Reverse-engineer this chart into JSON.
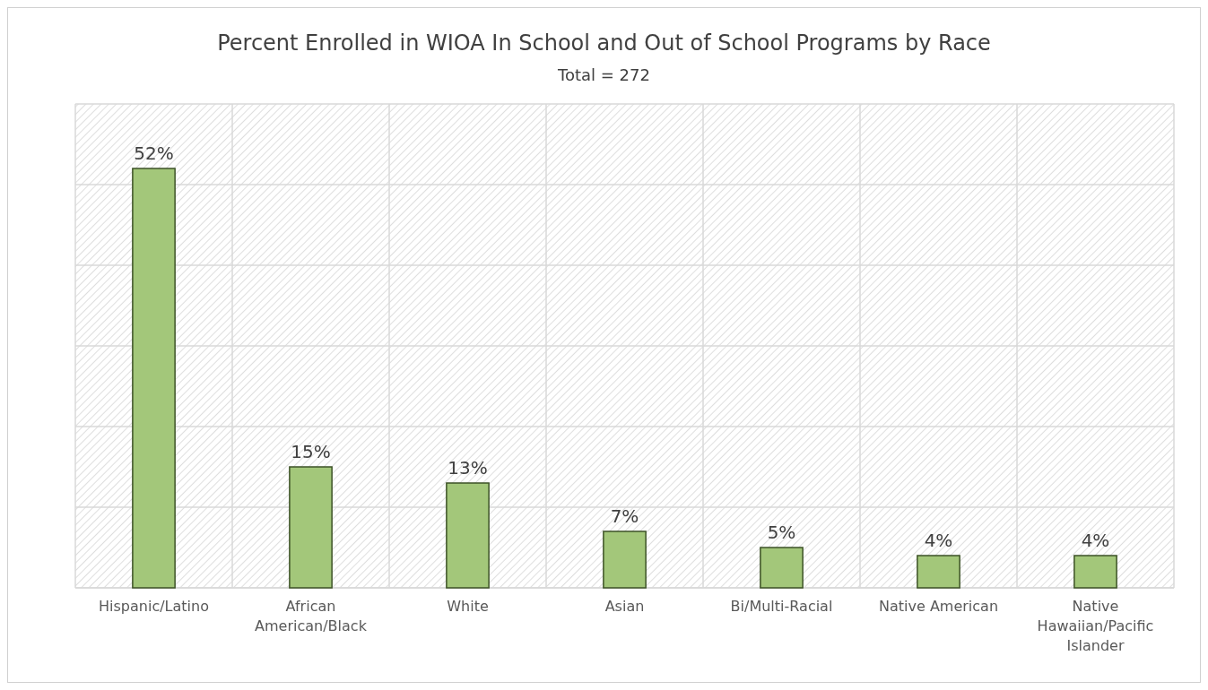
{
  "chart_data": {
    "type": "bar",
    "title": "Percent Enrolled in WIOA In School and Out of School Programs by Race",
    "subtitle": "Total = 272",
    "categories": [
      "Hispanic/Latino",
      "African American/Black",
      "White",
      "Asian",
      "Bi/Multi-Racial",
      "Native American",
      "Native Hawaiian/Pacific Islander"
    ],
    "values": [
      52,
      15,
      13,
      7,
      5,
      4,
      4
    ],
    "value_labels": [
      "52%",
      "15%",
      "13%",
      "7%",
      "5%",
      "4%",
      "4%"
    ],
    "color": "#a3c77a",
    "ylim": [
      0,
      60
    ],
    "yticks": [
      {
        "value": 0,
        "label": null
      },
      {
        "value": 10,
        "label": null
      },
      {
        "value": 20,
        "label": null
      },
      {
        "value": 30,
        "label": null
      },
      {
        "value": 40,
        "label": null
      },
      {
        "value": 50,
        "label": null
      },
      {
        "value": 60,
        "label": null
      }
    ],
    "tick_labels": "x",
    "grid": true
  }
}
